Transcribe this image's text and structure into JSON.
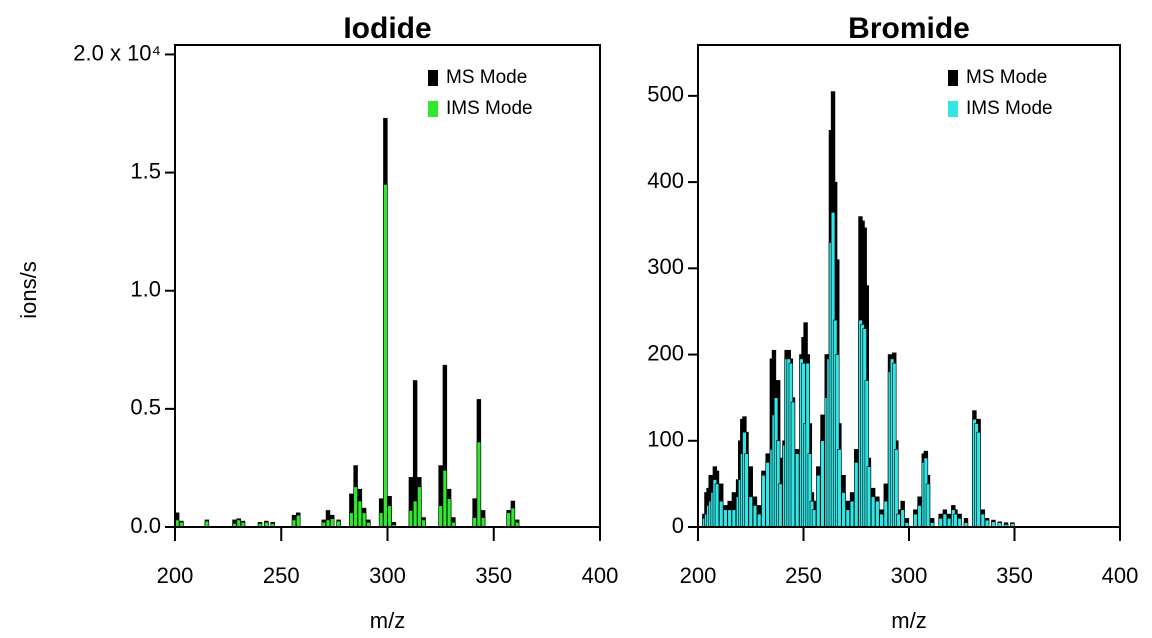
{
  "chart_data": [
    {
      "type": "bar",
      "title": "Iodide",
      "xlabel": "m/z",
      "ylabel": "ions/s",
      "legend": "upper right",
      "xlim": [
        200,
        400
      ],
      "xticks": [
        200,
        250,
        300,
        350,
        400
      ],
      "ylim": [
        0,
        20400
      ],
      "yticks": [
        {
          "value": 0,
          "label": "0.0"
        },
        {
          "value": 5000,
          "label": "0.5"
        },
        {
          "value": 10000,
          "label": "1.0"
        },
        {
          "value": 15000,
          "label": "1.5"
        },
        {
          "value": 20000,
          "label": "2.0 x 10⁴"
        }
      ],
      "x": [
        201,
        203,
        215,
        228,
        230,
        232,
        240,
        243,
        246,
        256,
        258,
        270,
        272,
        274,
        277,
        283,
        285,
        287,
        289,
        291,
        297,
        299,
        301,
        303,
        311,
        313,
        315,
        317,
        325,
        327,
        329,
        331,
        341,
        343,
        345,
        357,
        359,
        361
      ],
      "series": [
        {
          "name": "MS Mode",
          "color": "#000000",
          "values": [
            600,
            250,
            300,
            300,
            350,
            250,
            200,
            250,
            200,
            500,
            600,
            300,
            700,
            500,
            300,
            1400,
            2600,
            1600,
            800,
            300,
            1200,
            17300,
            1300,
            200,
            2100,
            6200,
            2100,
            400,
            2600,
            6850,
            1600,
            400,
            1200,
            5400,
            700,
            700,
            1100,
            300
          ]
        },
        {
          "name": "IMS Mode",
          "color": "#2ee82e",
          "values": [
            300,
            200,
            250,
            150,
            300,
            200,
            150,
            200,
            150,
            300,
            500,
            200,
            300,
            350,
            250,
            600,
            1700,
            1100,
            600,
            200,
            600,
            14500,
            900,
            100,
            700,
            1100,
            1700,
            300,
            900,
            2400,
            1200,
            200,
            400,
            3600,
            400,
            600,
            800,
            200
          ]
        }
      ]
    },
    {
      "type": "bar",
      "title": "Bromide",
      "xlabel": "m/z",
      "legend": "upper right",
      "xlim": [
        200,
        400
      ],
      "xticks": [
        200,
        250,
        300,
        350,
        400
      ],
      "ylim": [
        0,
        559
      ],
      "yticks": [
        0,
        100,
        200,
        300,
        400,
        500
      ],
      "x": [
        203,
        204,
        205,
        206,
        207,
        208,
        209,
        211,
        213,
        215,
        217,
        219,
        220,
        221,
        222,
        223,
        225,
        227,
        229,
        231,
        233,
        235,
        236,
        237,
        238,
        239,
        241,
        242,
        243,
        244,
        245,
        247,
        249,
        250,
        251,
        252,
        253,
        254,
        255,
        257,
        259,
        261,
        262,
        263,
        264,
        265,
        266,
        267,
        269,
        271,
        273,
        275,
        277,
        278,
        279,
        280,
        281,
        283,
        285,
        287,
        289,
        291,
        292,
        293,
        294,
        295,
        297,
        299,
        303,
        305,
        307,
        308,
        309,
        311,
        315,
        317,
        319,
        321,
        322,
        324,
        327,
        331,
        332,
        333,
        335,
        337,
        340,
        343,
        346,
        349
      ],
      "series": [
        {
          "name": "MS Mode",
          "color": "#000000",
          "values": [
            15,
            40,
            45,
            60,
            60,
            70,
            65,
            50,
            25,
            30,
            40,
            55,
            100,
            125,
            128,
            110,
            70,
            35,
            25,
            65,
            85,
            195,
            205,
            150,
            170,
            80,
            100,
            205,
            205,
            195,
            150,
            90,
            200,
            220,
            237,
            200,
            120,
            40,
            30,
            70,
            130,
            200,
            200,
            460,
            505,
            400,
            310,
            120,
            60,
            30,
            40,
            90,
            360,
            355,
            347,
            280,
            80,
            45,
            35,
            20,
            50,
            200,
            195,
            202,
            100,
            20,
            30,
            10,
            20,
            35,
            85,
            88,
            60,
            10,
            15,
            20,
            15,
            25,
            20,
            15,
            10,
            135,
            125,
            125,
            20,
            10,
            8,
            6,
            5,
            5
          ]
        },
        {
          "name": "IMS Mode",
          "color": "#33e6e6",
          "values": [
            10,
            15,
            25,
            30,
            40,
            55,
            50,
            30,
            20,
            20,
            20,
            35,
            55,
            85,
            110,
            85,
            35,
            25,
            15,
            60,
            75,
            90,
            130,
            150,
            100,
            50,
            95,
            195,
            195,
            190,
            145,
            85,
            195,
            190,
            120,
            190,
            85,
            30,
            20,
            60,
            100,
            150,
            195,
            330,
            365,
            240,
            200,
            90,
            40,
            20,
            30,
            75,
            240,
            235,
            230,
            170,
            70,
            35,
            30,
            15,
            30,
            180,
            195,
            190,
            90,
            15,
            20,
            5,
            15,
            25,
            75,
            80,
            50,
            5,
            10,
            15,
            10,
            20,
            15,
            10,
            5,
            125,
            120,
            110,
            15,
            8,
            6,
            5,
            3,
            4
          ]
        }
      ]
    }
  ]
}
